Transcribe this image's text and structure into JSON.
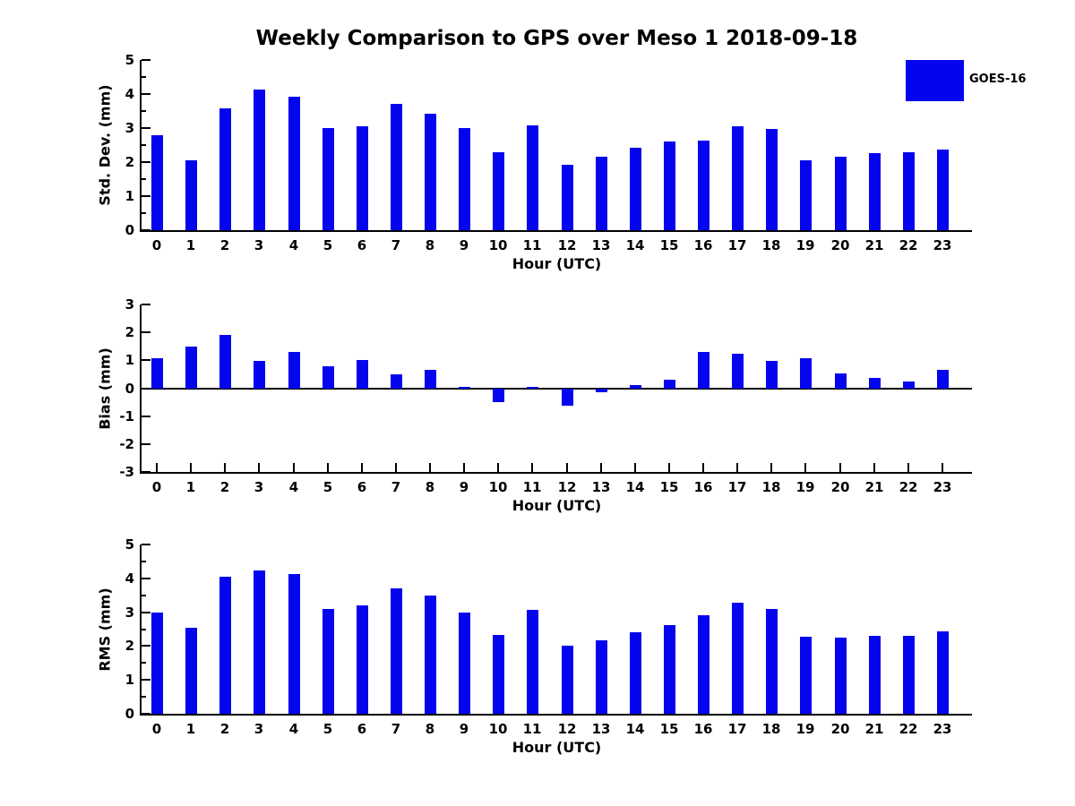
{
  "title": "Weekly Comparison to GPS over Meso 1 2018-09-18",
  "legend": {
    "label": "GOES-16",
    "swatch_color": "#0404ee",
    "position": "upper-right"
  },
  "bar_color": "#0404ee",
  "chart_data": [
    {
      "type": "bar",
      "name": "std-dev",
      "ylabel": "Std. Dev. (mm)",
      "xlabel": "Hour (UTC)",
      "categories": [
        "0",
        "1",
        "2",
        "3",
        "4",
        "5",
        "6",
        "7",
        "8",
        "9",
        "10",
        "11",
        "12",
        "13",
        "14",
        "15",
        "16",
        "17",
        "18",
        "19",
        "20",
        "21",
        "22",
        "23"
      ],
      "values": [
        2.8,
        2.05,
        3.59,
        4.13,
        3.93,
        3.01,
        3.06,
        3.72,
        3.43,
        3.01,
        2.3,
        3.08,
        1.91,
        2.17,
        2.43,
        2.61,
        2.62,
        3.04,
        2.98,
        2.04,
        2.17,
        2.27,
        2.29,
        2.36
      ],
      "ylim": [
        0,
        5
      ],
      "yticks": [
        5,
        4,
        3,
        2,
        1,
        0
      ],
      "series_name": "GOES-16",
      "grid": false
    },
    {
      "type": "bar",
      "name": "bias",
      "ylabel": "Bias (mm)",
      "xlabel": "Hour (UTC)",
      "categories": [
        "0",
        "1",
        "2",
        "3",
        "4",
        "5",
        "6",
        "7",
        "8",
        "9",
        "10",
        "11",
        "12",
        "13",
        "14",
        "15",
        "16",
        "17",
        "18",
        "19",
        "20",
        "21",
        "22",
        "23"
      ],
      "values": [
        1.1,
        1.5,
        1.92,
        1.01,
        1.32,
        0.8,
        1.04,
        0.5,
        0.67,
        0.07,
        -0.48,
        0.08,
        -0.6,
        -0.14,
        0.14,
        0.33,
        1.31,
        1.26,
        0.98,
        1.09,
        0.56,
        0.37,
        0.27,
        0.66
      ],
      "ylim": [
        -3,
        3
      ],
      "yticks": [
        3,
        2,
        1,
        0,
        -1,
        -2,
        -3
      ],
      "series_name": "GOES-16",
      "grid": false
    },
    {
      "type": "bar",
      "name": "rms",
      "ylabel": "RMS (mm)",
      "xlabel": "Hour (UTC)",
      "categories": [
        "0",
        "1",
        "2",
        "3",
        "4",
        "5",
        "6",
        "7",
        "8",
        "9",
        "10",
        "11",
        "12",
        "13",
        "14",
        "15",
        "16",
        "17",
        "18",
        "19",
        "20",
        "21",
        "22",
        "23"
      ],
      "values": [
        2.99,
        2.55,
        4.06,
        4.24,
        4.14,
        3.09,
        3.21,
        3.71,
        3.48,
        2.98,
        2.34,
        3.06,
        2.01,
        2.18,
        2.41,
        2.62,
        2.9,
        3.27,
        3.1,
        2.28,
        2.24,
        2.31,
        2.3,
        2.43
      ],
      "ylim": [
        0,
        5
      ],
      "yticks": [
        5,
        4,
        3,
        2,
        1,
        0
      ],
      "series_name": "GOES-16",
      "grid": false
    }
  ]
}
